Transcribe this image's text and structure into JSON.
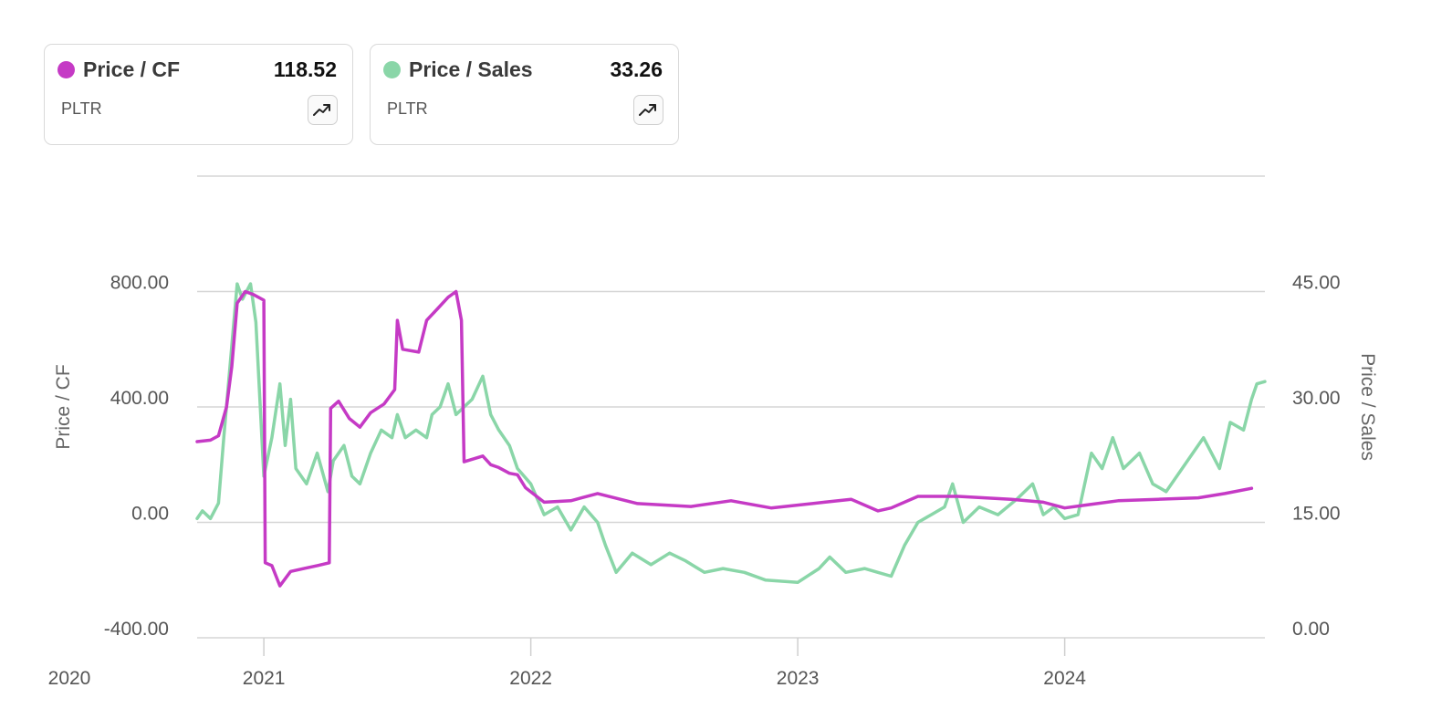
{
  "cards": [
    {
      "name": "Price / CF",
      "ticker": "PLTR",
      "value": "118.52",
      "color": "#c53ac5",
      "icon": "trending-up-icon"
    },
    {
      "name": "Price / Sales",
      "ticker": "PLTR",
      "value": "33.26",
      "color": "#8ad6a8",
      "icon": "trending-up-icon"
    }
  ],
  "chart_data": {
    "type": "line",
    "xlim": [
      2020.75,
      2024.75
    ],
    "x_ticks": [
      {
        "value": 2020,
        "label": "2020"
      },
      {
        "value": 2021,
        "label": "2021"
      },
      {
        "value": 2022,
        "label": "2022"
      },
      {
        "value": 2023,
        "label": "2023"
      },
      {
        "value": 2024,
        "label": "2024"
      }
    ],
    "y_left": {
      "label": "Price / CF",
      "range": [
        -400,
        1200
      ],
      "ticks": [
        {
          "value": 800,
          "label": "800.00"
        },
        {
          "value": 400,
          "label": "400.00"
        },
        {
          "value": 0,
          "label": "0.00"
        },
        {
          "value": -400,
          "label": "-400.00"
        }
      ]
    },
    "y_right": {
      "label": "Price / Sales",
      "range": [
        0,
        60
      ],
      "ticks": [
        {
          "value": 45,
          "label": "45.00"
        },
        {
          "value": 30,
          "label": "30.00"
        },
        {
          "value": 15,
          "label": "15.00"
        },
        {
          "value": 0,
          "label": "0.00"
        }
      ]
    },
    "grid": true,
    "series": [
      {
        "name": "Price / CF",
        "axis": "left",
        "color": "#c53ac5",
        "points": [
          [
            2020.75,
            280
          ],
          [
            2020.8,
            285
          ],
          [
            2020.83,
            300
          ],
          [
            2020.86,
            400
          ],
          [
            2020.88,
            540
          ],
          [
            2020.9,
            760
          ],
          [
            2020.93,
            800
          ],
          [
            2020.96,
            790
          ],
          [
            2021.0,
            770
          ],
          [
            2021.005,
            -140
          ],
          [
            2021.03,
            -150
          ],
          [
            2021.06,
            -220
          ],
          [
            2021.1,
            -170
          ],
          [
            2021.15,
            -160
          ],
          [
            2021.2,
            -150
          ],
          [
            2021.245,
            -140
          ],
          [
            2021.25,
            395
          ],
          [
            2021.28,
            420
          ],
          [
            2021.32,
            360
          ],
          [
            2021.36,
            330
          ],
          [
            2021.4,
            380
          ],
          [
            2021.45,
            410
          ],
          [
            2021.49,
            460
          ],
          [
            2021.5,
            700
          ],
          [
            2021.52,
            600
          ],
          [
            2021.58,
            590
          ],
          [
            2021.61,
            700
          ],
          [
            2021.65,
            740
          ],
          [
            2021.69,
            780
          ],
          [
            2021.72,
            800
          ],
          [
            2021.74,
            700
          ],
          [
            2021.75,
            210
          ],
          [
            2021.82,
            230
          ],
          [
            2021.85,
            200
          ],
          [
            2021.88,
            190
          ],
          [
            2021.92,
            170
          ],
          [
            2021.95,
            165
          ],
          [
            2021.98,
            120
          ],
          [
            2022.05,
            70
          ],
          [
            2022.15,
            75
          ],
          [
            2022.25,
            100
          ],
          [
            2022.4,
            65
          ],
          [
            2022.6,
            55
          ],
          [
            2022.75,
            75
          ],
          [
            2022.9,
            50
          ],
          [
            2023.1,
            70
          ],
          [
            2023.2,
            80
          ],
          [
            2023.3,
            40
          ],
          [
            2023.35,
            50
          ],
          [
            2023.45,
            90
          ],
          [
            2023.6,
            90
          ],
          [
            2023.8,
            80
          ],
          [
            2023.92,
            70
          ],
          [
            2024.0,
            50
          ],
          [
            2024.08,
            60
          ],
          [
            2024.2,
            75
          ],
          [
            2024.35,
            80
          ],
          [
            2024.5,
            85
          ],
          [
            2024.6,
            100
          ],
          [
            2024.7,
            118
          ]
        ]
      },
      {
        "name": "Price / Sales",
        "axis": "right",
        "color": "#8ad6a8",
        "points": [
          [
            2020.75,
            15.5
          ],
          [
            2020.77,
            16.5
          ],
          [
            2020.8,
            15.5
          ],
          [
            2020.83,
            17.5
          ],
          [
            2020.85,
            26
          ],
          [
            2020.88,
            38
          ],
          [
            2020.9,
            46
          ],
          [
            2020.92,
            44
          ],
          [
            2020.95,
            46
          ],
          [
            2020.97,
            41
          ],
          [
            2021.0,
            21
          ],
          [
            2021.03,
            26
          ],
          [
            2021.06,
            33
          ],
          [
            2021.08,
            25
          ],
          [
            2021.1,
            31
          ],
          [
            2021.12,
            22
          ],
          [
            2021.16,
            20
          ],
          [
            2021.2,
            24
          ],
          [
            2021.24,
            19
          ],
          [
            2021.26,
            23
          ],
          [
            2021.3,
            25
          ],
          [
            2021.33,
            21
          ],
          [
            2021.36,
            20
          ],
          [
            2021.4,
            24
          ],
          [
            2021.44,
            27
          ],
          [
            2021.48,
            26
          ],
          [
            2021.5,
            29
          ],
          [
            2021.53,
            26
          ],
          [
            2021.57,
            27
          ],
          [
            2021.61,
            26
          ],
          [
            2021.63,
            29
          ],
          [
            2021.66,
            30
          ],
          [
            2021.69,
            33
          ],
          [
            2021.72,
            29
          ],
          [
            2021.75,
            30
          ],
          [
            2021.78,
            31
          ],
          [
            2021.82,
            34
          ],
          [
            2021.85,
            29
          ],
          [
            2021.88,
            27
          ],
          [
            2021.92,
            25
          ],
          [
            2021.95,
            22
          ],
          [
            2022.0,
            20
          ],
          [
            2022.05,
            16
          ],
          [
            2022.1,
            17
          ],
          [
            2022.15,
            14
          ],
          [
            2022.2,
            17
          ],
          [
            2022.25,
            15
          ],
          [
            2022.28,
            12
          ],
          [
            2022.32,
            8.5
          ],
          [
            2022.38,
            11
          ],
          [
            2022.45,
            9.5
          ],
          [
            2022.52,
            11
          ],
          [
            2022.58,
            10
          ],
          [
            2022.65,
            8.5
          ],
          [
            2022.72,
            9
          ],
          [
            2022.8,
            8.5
          ],
          [
            2022.88,
            7.5
          ],
          [
            2023.0,
            7.2
          ],
          [
            2023.08,
            9
          ],
          [
            2023.12,
            10.5
          ],
          [
            2023.18,
            8.5
          ],
          [
            2023.25,
            9
          ],
          [
            2023.3,
            8.5
          ],
          [
            2023.35,
            8
          ],
          [
            2023.4,
            12
          ],
          [
            2023.45,
            15
          ],
          [
            2023.5,
            16
          ],
          [
            2023.55,
            17
          ],
          [
            2023.58,
            20
          ],
          [
            2023.62,
            15
          ],
          [
            2023.68,
            17
          ],
          [
            2023.75,
            16
          ],
          [
            2023.82,
            18
          ],
          [
            2023.88,
            20
          ],
          [
            2023.92,
            16
          ],
          [
            2023.96,
            17
          ],
          [
            2024.0,
            15.5
          ],
          [
            2024.05,
            16
          ],
          [
            2024.1,
            24
          ],
          [
            2024.14,
            22
          ],
          [
            2024.18,
            26
          ],
          [
            2024.22,
            22
          ],
          [
            2024.28,
            24
          ],
          [
            2024.33,
            20
          ],
          [
            2024.38,
            19
          ],
          [
            2024.42,
            21
          ],
          [
            2024.48,
            24
          ],
          [
            2024.52,
            26
          ],
          [
            2024.58,
            22
          ],
          [
            2024.62,
            28
          ],
          [
            2024.67,
            27
          ],
          [
            2024.7,
            31
          ],
          [
            2024.72,
            33
          ],
          [
            2024.75,
            33.3
          ]
        ]
      }
    ]
  }
}
